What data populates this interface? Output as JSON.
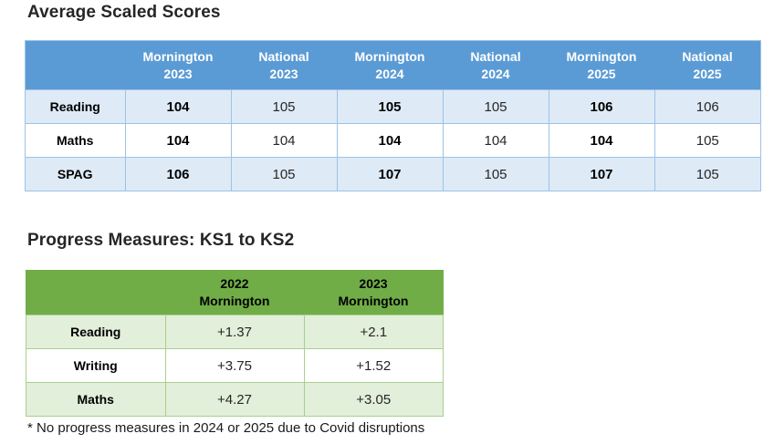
{
  "scaled_scores": {
    "title": "Average Scaled Scores",
    "columns": [
      {
        "line1": "Mornington",
        "line2": "2023",
        "emphasis": true
      },
      {
        "line1": "National",
        "line2": "2023",
        "emphasis": false
      },
      {
        "line1": "Mornington",
        "line2": "2024",
        "emphasis": true
      },
      {
        "line1": "National",
        "line2": "2024",
        "emphasis": false
      },
      {
        "line1": "Mornington",
        "line2": "2025",
        "emphasis": true
      },
      {
        "line1": "National",
        "line2": "2025",
        "emphasis": false
      }
    ],
    "rows": [
      {
        "label": "Reading",
        "values": [
          "104",
          "105",
          "105",
          "105",
          "106",
          "106"
        ]
      },
      {
        "label": "Maths",
        "values": [
          "104",
          "104",
          "104",
          "104",
          "104",
          "105"
        ]
      },
      {
        "label": "SPAG",
        "values": [
          "106",
          "105",
          "107",
          "105",
          "107",
          "105"
        ]
      }
    ]
  },
  "progress": {
    "title": "Progress Measures: KS1 to KS2",
    "columns": [
      {
        "line1": "2022",
        "line2": "Mornington",
        "emphasis": false
      },
      {
        "line1": "2023",
        "line2": "Mornington",
        "emphasis": false
      }
    ],
    "rows": [
      {
        "label": "Reading",
        "values": [
          "+1.37",
          "+2.1"
        ]
      },
      {
        "label": "Writing",
        "values": [
          "+3.75",
          "+1.52"
        ]
      },
      {
        "label": "Maths",
        "values": [
          "+4.27",
          "+3.05"
        ]
      }
    ]
  },
  "footnote": "* No progress measures in 2024 or 2025 due to Covid disruptions",
  "colors": {
    "blue_header": "#5B9BD5",
    "blue_band": "#DEEAF6",
    "blue_border": "#9CC3E6",
    "green_header": "#70AD47",
    "green_band": "#E2EFDA",
    "green_border": "#A9D08E"
  }
}
